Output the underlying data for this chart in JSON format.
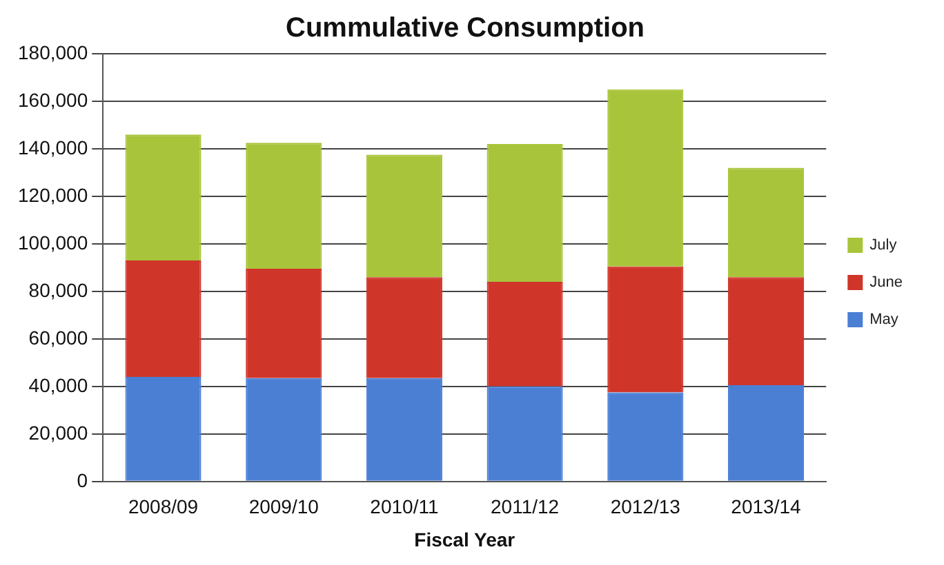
{
  "chart_data": {
    "type": "bar",
    "title": "Cummulative Consumption",
    "xlabel": "Fiscal Year",
    "categories": [
      "2008/09",
      "2009/10",
      "2010/11",
      "2011/12",
      "2012/13",
      "2013/14"
    ],
    "stacked": true,
    "series": [
      {
        "name": "May",
        "color": "#4a7fd4",
        "values": [
          44000,
          43500,
          43500,
          40000,
          37500,
          40500
        ]
      },
      {
        "name": "June",
        "color": "#d0352a",
        "values": [
          49000,
          46000,
          42500,
          44000,
          53000,
          45500
        ]
      },
      {
        "name": "July",
        "color": "#a8c43a",
        "values": [
          53000,
          53000,
          51500,
          58000,
          74500,
          46000
        ]
      }
    ],
    "ylim": [
      0,
      180000
    ],
    "yticks": [
      0,
      {
        "value": 20000,
        "label": "20,000"
      },
      {
        "value": 40000,
        "label": "40,000"
      },
      {
        "value": 60000,
        "label": "60,000"
      },
      {
        "value": 80000,
        "label": "80,000"
      },
      {
        "value": 100000,
        "label": "100,000"
      },
      {
        "value": 120000,
        "label": "120,000"
      },
      {
        "value": 140000,
        "label": "140,000"
      },
      {
        "value": 160000,
        "label": "160,000"
      },
      {
        "value": 180000,
        "label": "180,000"
      }
    ],
    "grid": "y",
    "legend": "right"
  }
}
